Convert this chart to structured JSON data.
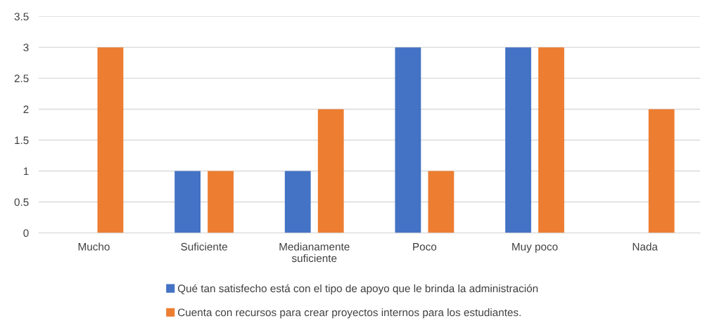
{
  "chart_data": {
    "type": "bar",
    "categories": [
      "Mucho",
      "Suficiente",
      "Medianamente suficiente",
      "Poco",
      "Muy poco",
      "Nada"
    ],
    "series": [
      {
        "name": "Qué tan satisfecho está con el tipo de apoyo que le brinda la administración",
        "color": "#4472c4",
        "values": [
          0,
          1,
          1,
          3,
          3,
          0
        ]
      },
      {
        "name": "Cuenta con recursos para crear proyectos internos para los estudiantes.",
        "color": "#ed7d31",
        "values": [
          3,
          1,
          2,
          1,
          3,
          2
        ]
      }
    ],
    "ylim": [
      0,
      3.5
    ],
    "yticks": [
      0,
      0.5,
      1,
      1.5,
      2,
      2.5,
      3,
      3.5
    ],
    "grid": "y",
    "legend": "bottom"
  }
}
